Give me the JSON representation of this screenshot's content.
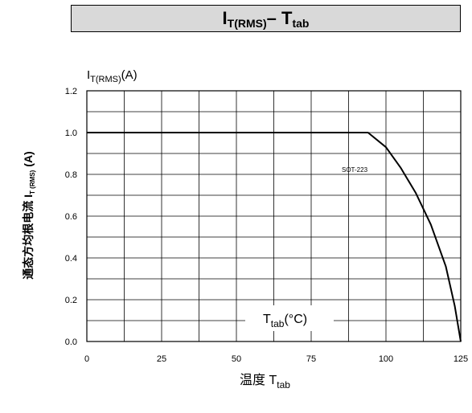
{
  "header": {
    "title_main": "I",
    "title_sub": "T(RMS)",
    "title_dash": " – T",
    "title_sub2": "tab"
  },
  "chart_data": {
    "type": "line",
    "xlim": [
      0,
      125
    ],
    "ylim": [
      0,
      1.2
    ],
    "x_ticks": [
      "0",
      "25",
      "50",
      "75",
      "100",
      "125"
    ],
    "x_tick_values": [
      0,
      25,
      50,
      75,
      100,
      125
    ],
    "y_ticks": [
      "0.0",
      "0.2",
      "0.4",
      "0.6",
      "0.8",
      "1.0",
      "1.2"
    ],
    "y_tick_values": [
      0,
      0.2,
      0.4,
      0.6,
      0.8,
      1.0,
      1.2
    ],
    "grid": true,
    "y_axis_unit": {
      "main": "I",
      "sub": "T(RMS)",
      "unit": "(A)"
    },
    "x_axis_unit": {
      "main": "T",
      "sub": "tab",
      "unit": "(°C)"
    },
    "ylabel": "通态方均根电流 I",
    "ylabel_sub": "T (RMS)",
    "ylabel_unit": "(A)",
    "xlabel": "温度 T",
    "xlabel_sub": "tab",
    "series": [
      {
        "name": "SOT-223",
        "color": "#000000",
        "points": [
          {
            "x": 0,
            "y": 1.0
          },
          {
            "x": 94,
            "y": 1.0
          },
          {
            "x": 100,
            "y": 0.93
          },
          {
            "x": 105,
            "y": 0.83
          },
          {
            "x": 110,
            "y": 0.71
          },
          {
            "x": 115,
            "y": 0.56
          },
          {
            "x": 120,
            "y": 0.36
          },
          {
            "x": 123,
            "y": 0.17
          },
          {
            "x": 125,
            "y": 0.0
          }
        ]
      }
    ]
  }
}
